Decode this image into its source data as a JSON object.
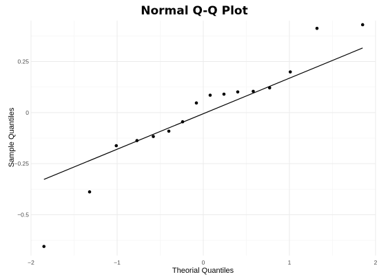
{
  "chart_data": {
    "type": "scatter",
    "title": "Normal Q-Q Plot",
    "xlabel": "Theorial Quantiles",
    "ylabel": "Sample Quantiles",
    "xlim": [
      -2,
      2
    ],
    "ylim": [
      -0.7,
      0.45
    ],
    "grid": true,
    "x_ticks": [
      -2,
      -1,
      0,
      1,
      2
    ],
    "x_tick_labels": [
      "−2",
      "−1",
      "0",
      "1",
      "2"
    ],
    "y_ticks": [
      -0.5,
      -0.25,
      0,
      0.25
    ],
    "y_tick_labels": [
      "−0.5",
      "−0.25",
      "0",
      "0.25"
    ],
    "points": [
      {
        "x": -1.85,
        "y": -0.655
      },
      {
        "x": -1.32,
        "y": -0.388
      },
      {
        "x": -1.01,
        "y": -0.162
      },
      {
        "x": -0.77,
        "y": -0.137
      },
      {
        "x": -0.58,
        "y": -0.117
      },
      {
        "x": -0.4,
        "y": -0.091
      },
      {
        "x": -0.24,
        "y": -0.045
      },
      {
        "x": -0.08,
        "y": 0.047
      },
      {
        "x": 0.08,
        "y": 0.085
      },
      {
        "x": 0.24,
        "y": 0.09
      },
      {
        "x": 0.4,
        "y": 0.101
      },
      {
        "x": 0.58,
        "y": 0.104
      },
      {
        "x": 0.77,
        "y": 0.121
      },
      {
        "x": 1.01,
        "y": 0.199
      },
      {
        "x": 1.32,
        "y": 0.412
      },
      {
        "x": 1.85,
        "y": 0.43
      }
    ],
    "reference_line": {
      "x": [
        -1.85,
        1.85
      ],
      "y": [
        -0.327,
        0.316
      ]
    }
  }
}
